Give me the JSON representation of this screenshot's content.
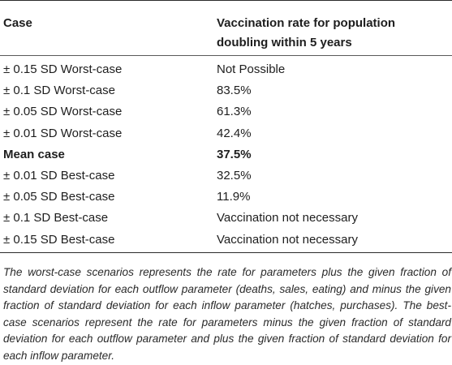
{
  "table": {
    "headers": {
      "case": "Case",
      "rate": "Vaccination rate for population doubling within 5 years"
    },
    "rows": [
      {
        "case": "± 0.15 SD Worst-case",
        "rate": "Not Possible",
        "bold": false
      },
      {
        "case": "± 0.1 SD Worst-case",
        "rate": "83.5%",
        "bold": false
      },
      {
        "case": "± 0.05 SD Worst-case",
        "rate": "61.3%",
        "bold": false
      },
      {
        "case": "± 0.01 SD Worst-case",
        "rate": "42.4%",
        "bold": false
      },
      {
        "case": "Mean case",
        "rate": "37.5%",
        "bold": true
      },
      {
        "case": "± 0.01 SD Best-case",
        "rate": "32.5%",
        "bold": false
      },
      {
        "case": "± 0.05 SD Best-case",
        "rate": "11.9%",
        "bold": false
      },
      {
        "case": "± 0.1 SD Best-case",
        "rate": "Vaccination not necessary",
        "bold": false
      },
      {
        "case": "± 0.15 SD Best-case",
        "rate": "Vaccination not necessary",
        "bold": false
      }
    ]
  },
  "footnote": "The worst-case scenarios represents the rate for parameters plus the given fraction of standard deviation for each outflow parameter (deaths, sales, eating) and minus the given fraction of standard deviation for each inflow parameter (hatches, purchases). The best-case scenarios represent the rate for parameters minus the given fraction of standard deviation for each outflow parameter and plus the given fraction of standard deviation for each inflow parameter."
}
